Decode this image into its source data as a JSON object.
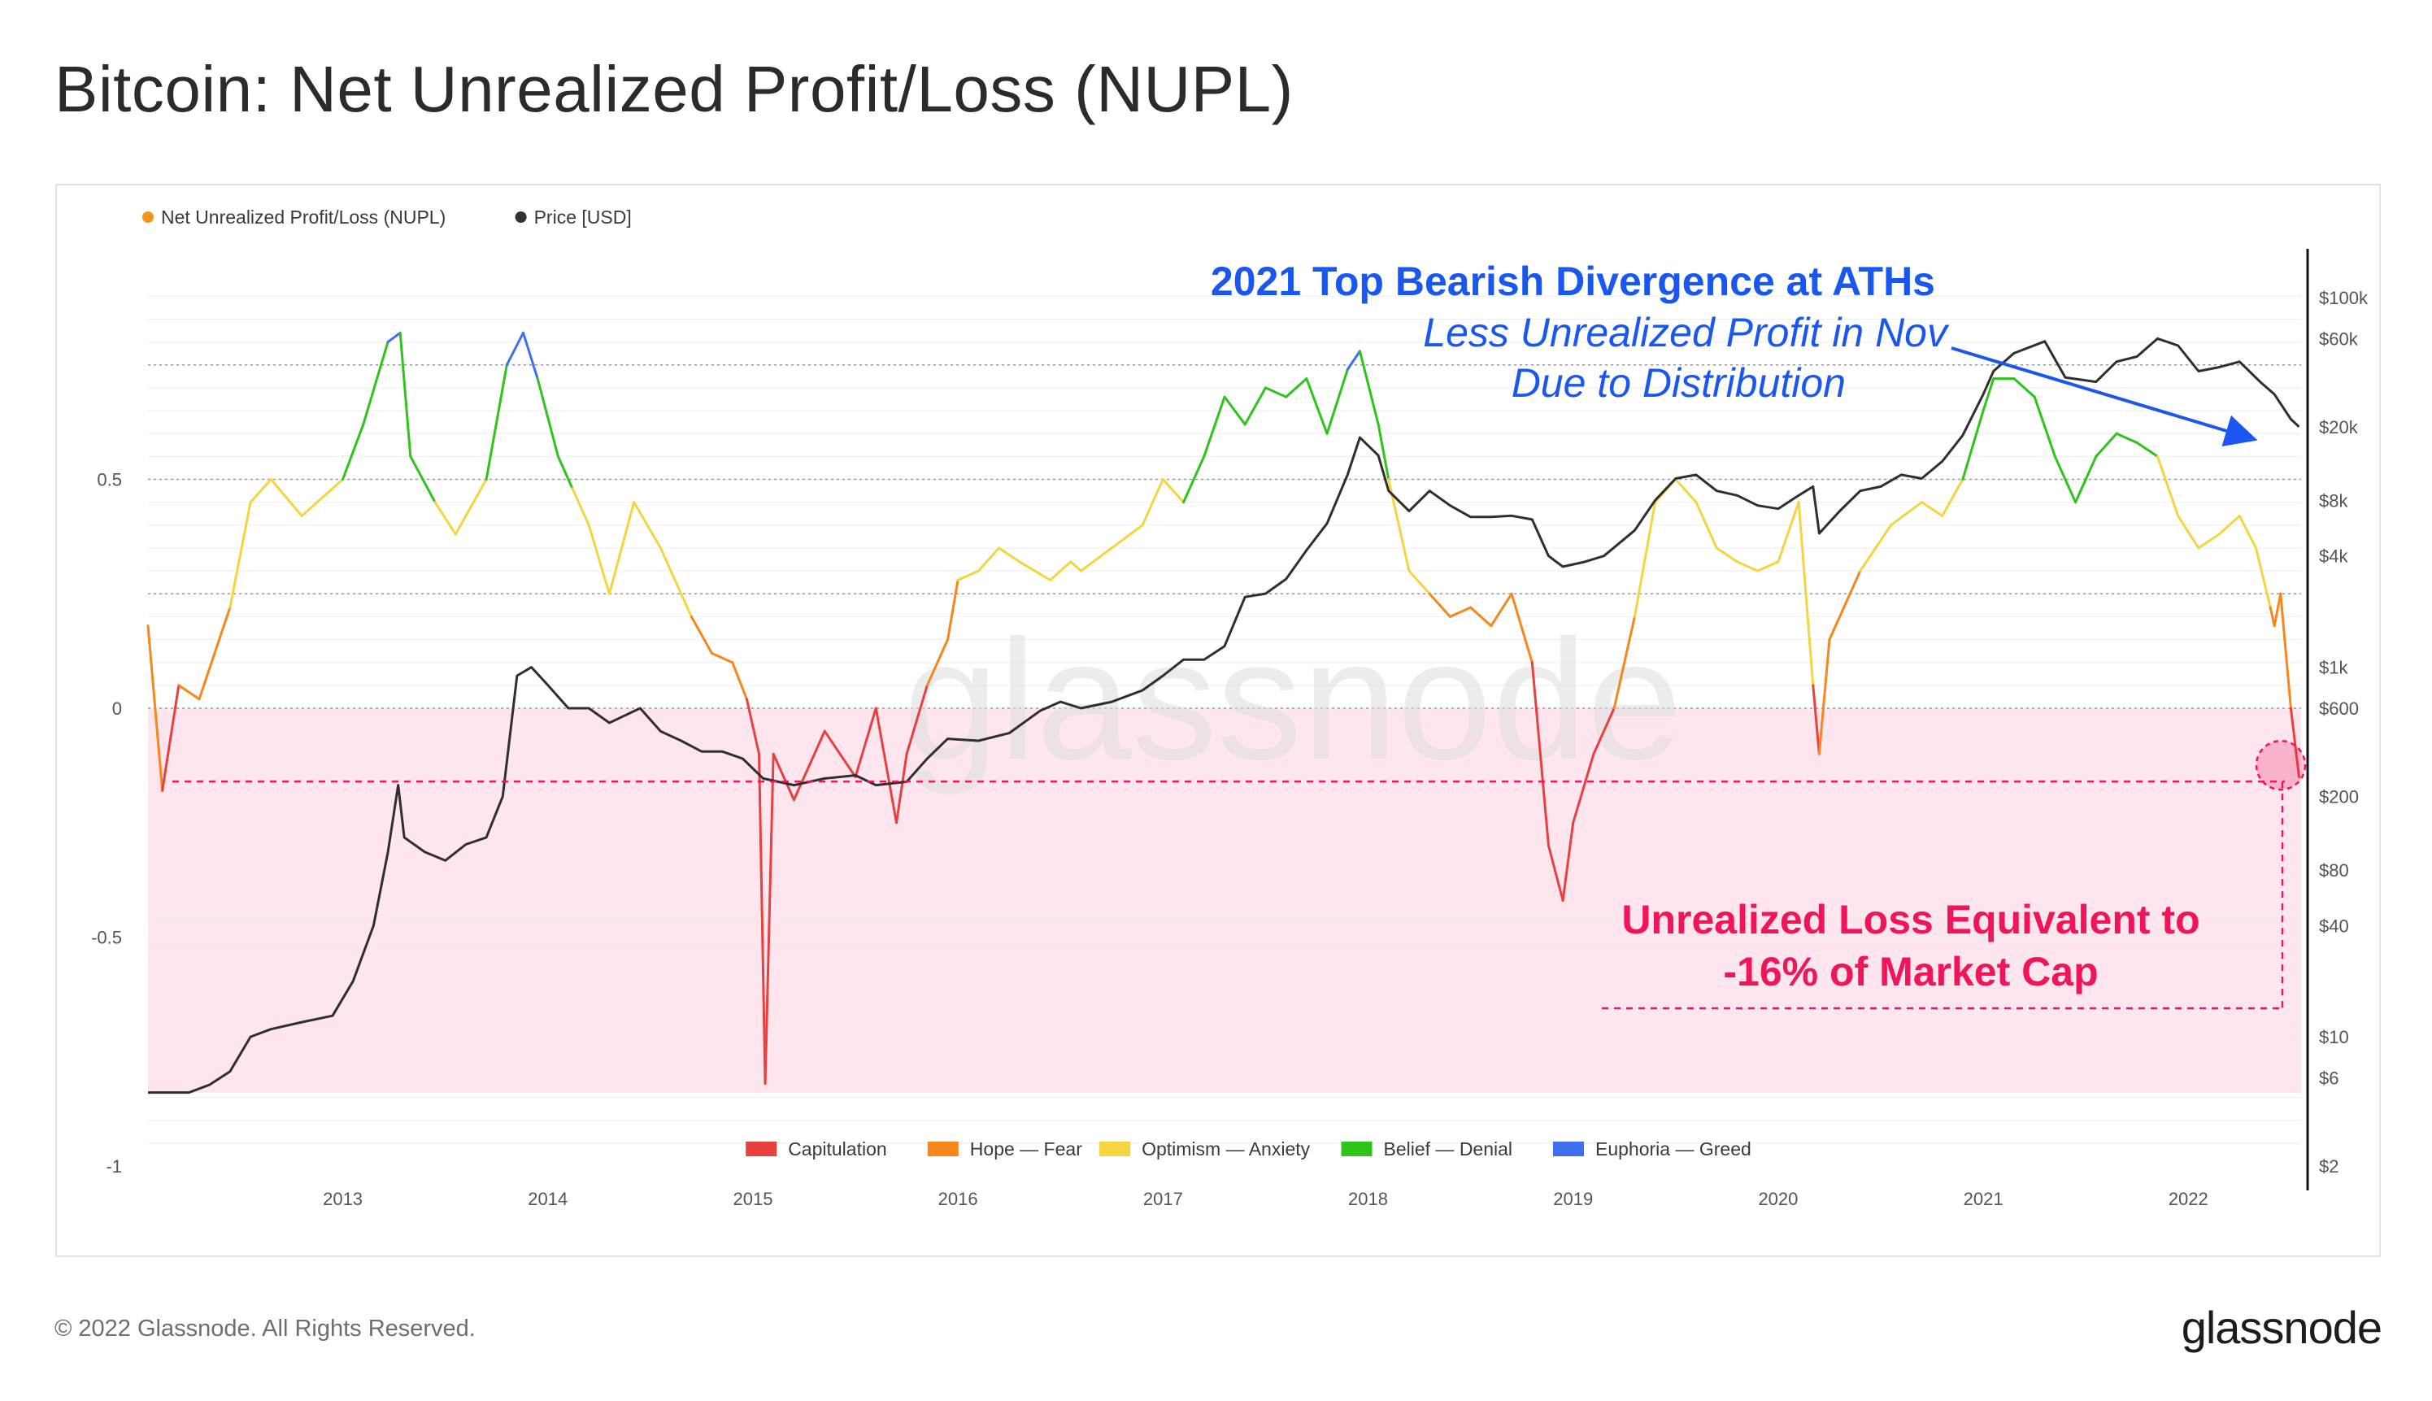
{
  "title": "Bitcoin: Net Unrealized Profit/Loss (NUPL)",
  "footer": {
    "copyright": "© 2022 Glassnode. All Rights Reserved.",
    "logo": "glassnode"
  },
  "watermark": "glassnode",
  "chart_data": {
    "type": "line",
    "legend_top": [
      {
        "name": "Net Unrealized Profit/Loss (NUPL)",
        "color": "#f7931a"
      },
      {
        "name": "Price [USD]",
        "color": "#333333"
      }
    ],
    "legend_bottom": [
      {
        "name": "Capitulation",
        "color": "#e8403e"
      },
      {
        "name": "Hope — Fear",
        "color": "#f7861c"
      },
      {
        "name": "Optimism — Anxiety",
        "color": "#f5d53f"
      },
      {
        "name": "Belief — Denial",
        "color": "#2ec41b"
      },
      {
        "name": "Euphoria — Greed",
        "color": "#3d6ff0"
      }
    ],
    "x_ticks": [
      "2013",
      "2014",
      "2015",
      "2016",
      "2017",
      "2018",
      "2019",
      "2020",
      "2021",
      "2022"
    ],
    "x_range": [
      2012.05,
      2022.55
    ],
    "y_left": {
      "ticks": [
        "0.5",
        "0",
        "-0.5",
        "-1"
      ],
      "tick_values": [
        0.5,
        0,
        -0.5,
        -1
      ],
      "range": [
        -1,
        1
      ]
    },
    "y_right": {
      "scale": "log",
      "ticks": [
        "$100k",
        "$60k",
        "$20k",
        "$8k",
        "$4k",
        "$1k",
        "$600",
        "$200",
        "$80",
        "$40",
        "$10",
        "$6",
        "$2"
      ],
      "tick_values": [
        100000,
        60000,
        20000,
        8000,
        4000,
        1000,
        600,
        200,
        80,
        40,
        10,
        6,
        2
      ]
    },
    "zone_thresholds": {
      "capitulation": 0,
      "hope_fear": 0.25,
      "optimism_anxiety": 0.5,
      "belief_denial": 0.75
    },
    "series": [
      {
        "name": "Net Unrealized Profit/Loss (NUPL)",
        "x": [
          2012.05,
          2012.12,
          2012.2,
          2012.3,
          2012.45,
          2012.55,
          2012.65,
          2012.8,
          2012.95,
          2013.0,
          2013.1,
          2013.22,
          2013.28,
          2013.33,
          2013.45,
          2013.55,
          2013.7,
          2013.8,
          2013.88,
          2013.95,
          2014.05,
          2014.12,
          2014.2,
          2014.3,
          2014.42,
          2014.55,
          2014.7,
          2014.8,
          2014.9,
          2014.97,
          2015.03,
          2015.06,
          2015.1,
          2015.2,
          2015.35,
          2015.5,
          2015.6,
          2015.7,
          2015.75,
          2015.85,
          2015.95,
          2016.0,
          2016.1,
          2016.2,
          2016.3,
          2016.45,
          2016.55,
          2016.6,
          2016.75,
          2016.9,
          2017.0,
          2017.1,
          2017.2,
          2017.3,
          2017.4,
          2017.5,
          2017.6,
          2017.7,
          2017.8,
          2017.9,
          2017.96,
          2018.05,
          2018.1,
          2018.2,
          2018.3,
          2018.4,
          2018.5,
          2018.6,
          2018.7,
          2018.8,
          2018.88,
          2018.95,
          2019.0,
          2019.1,
          2019.2,
          2019.3,
          2019.4,
          2019.5,
          2019.6,
          2019.7,
          2019.8,
          2019.9,
          2020.0,
          2020.1,
          2020.17,
          2020.2,
          2020.25,
          2020.4,
          2020.55,
          2020.7,
          2020.8,
          2020.9,
          2021.0,
          2021.05,
          2021.15,
          2021.25,
          2021.35,
          2021.45,
          2021.55,
          2021.65,
          2021.75,
          2021.85,
          2021.95,
          2022.05,
          2022.15,
          2022.25,
          2022.33,
          2022.4,
          2022.42,
          2022.45,
          2022.5,
          2022.54
        ],
        "values": [
          0.18,
          -0.18,
          0.05,
          0.02,
          0.22,
          0.45,
          0.5,
          0.42,
          0.48,
          0.5,
          0.62,
          0.8,
          0.82,
          0.55,
          0.45,
          0.38,
          0.5,
          0.75,
          0.82,
          0.72,
          0.55,
          0.48,
          0.4,
          0.25,
          0.45,
          0.35,
          0.2,
          0.12,
          0.1,
          0.02,
          -0.1,
          -0.82,
          -0.1,
          -0.2,
          -0.05,
          -0.15,
          0.0,
          -0.25,
          -0.1,
          0.05,
          0.15,
          0.28,
          0.3,
          0.35,
          0.32,
          0.28,
          0.32,
          0.3,
          0.35,
          0.4,
          0.5,
          0.45,
          0.55,
          0.68,
          0.62,
          0.7,
          0.68,
          0.72,
          0.6,
          0.74,
          0.78,
          0.62,
          0.5,
          0.3,
          0.25,
          0.2,
          0.22,
          0.18,
          0.25,
          0.1,
          -0.3,
          -0.42,
          -0.25,
          -0.1,
          0.0,
          0.2,
          0.45,
          0.5,
          0.45,
          0.35,
          0.32,
          0.3,
          0.32,
          0.45,
          0.05,
          -0.1,
          0.15,
          0.3,
          0.4,
          0.45,
          0.42,
          0.5,
          0.65,
          0.72,
          0.72,
          0.68,
          0.55,
          0.45,
          0.55,
          0.6,
          0.58,
          0.55,
          0.42,
          0.35,
          0.38,
          0.42,
          0.35,
          0.22,
          0.18,
          0.25,
          0.0,
          -0.15
        ]
      },
      {
        "name": "Price [USD]",
        "x": [
          2012.05,
          2012.15,
          2012.25,
          2012.35,
          2012.45,
          2012.55,
          2012.65,
          2012.8,
          2012.95,
          2013.05,
          2013.15,
          2013.22,
          2013.27,
          2013.3,
          2013.4,
          2013.5,
          2013.6,
          2013.7,
          2013.78,
          2013.85,
          2013.92,
          2014.0,
          2014.1,
          2014.2,
          2014.3,
          2014.45,
          2014.55,
          2014.65,
          2014.75,
          2014.85,
          2014.95,
          2015.05,
          2015.2,
          2015.35,
          2015.5,
          2015.6,
          2015.75,
          2015.85,
          2015.95,
          2016.1,
          2016.25,
          2016.4,
          2016.5,
          2016.6,
          2016.75,
          2016.9,
          2017.0,
          2017.1,
          2017.2,
          2017.3,
          2017.4,
          2017.5,
          2017.6,
          2017.7,
          2017.8,
          2017.9,
          2017.96,
          2018.05,
          2018.1,
          2018.2,
          2018.3,
          2018.4,
          2018.5,
          2018.6,
          2018.7,
          2018.8,
          2018.88,
          2018.95,
          2019.05,
          2019.15,
          2019.3,
          2019.4,
          2019.5,
          2019.6,
          2019.7,
          2019.8,
          2019.9,
          2020.0,
          2020.1,
          2020.17,
          2020.2,
          2020.3,
          2020.4,
          2020.5,
          2020.6,
          2020.7,
          2020.8,
          2020.9,
          2021.0,
          2021.05,
          2021.15,
          2021.3,
          2021.4,
          2021.55,
          2021.65,
          2021.75,
          2021.85,
          2021.95,
          2022.05,
          2022.15,
          2022.25,
          2022.35,
          2022.42,
          2022.5,
          2022.54
        ],
        "values": [
          5,
          5,
          5,
          5.5,
          6.5,
          10,
          11,
          12,
          13,
          20,
          40,
          100,
          230,
          120,
          100,
          90,
          110,
          120,
          200,
          900,
          1000,
          800,
          600,
          600,
          500,
          600,
          450,
          400,
          350,
          350,
          320,
          250,
          230,
          250,
          260,
          230,
          240,
          320,
          410,
          400,
          440,
          580,
          650,
          600,
          650,
          750,
          900,
          1100,
          1100,
          1300,
          2400,
          2500,
          3000,
          4300,
          6000,
          11000,
          17500,
          14000,
          9000,
          7000,
          9000,
          7500,
          6500,
          6500,
          6600,
          6300,
          4000,
          3500,
          3700,
          4000,
          5500,
          8000,
          10500,
          11000,
          9000,
          8500,
          7500,
          7200,
          8500,
          9500,
          5300,
          7000,
          9000,
          9500,
          11000,
          10500,
          13000,
          18000,
          30000,
          40000,
          50000,
          58000,
          37000,
          35000,
          45000,
          48000,
          60000,
          55000,
          40000,
          42000,
          45000,
          35000,
          30000,
          22000,
          20000
        ]
      }
    ],
    "annotations": [
      "2021 Top Bearish Divergence at ATHs",
      "Less Unrealized Profit in Nov",
      "Due to Distribution",
      "Unrealized Loss Equivalent to",
      "-16% of Market Cap"
    ],
    "reference_line_value": -0.16
  }
}
